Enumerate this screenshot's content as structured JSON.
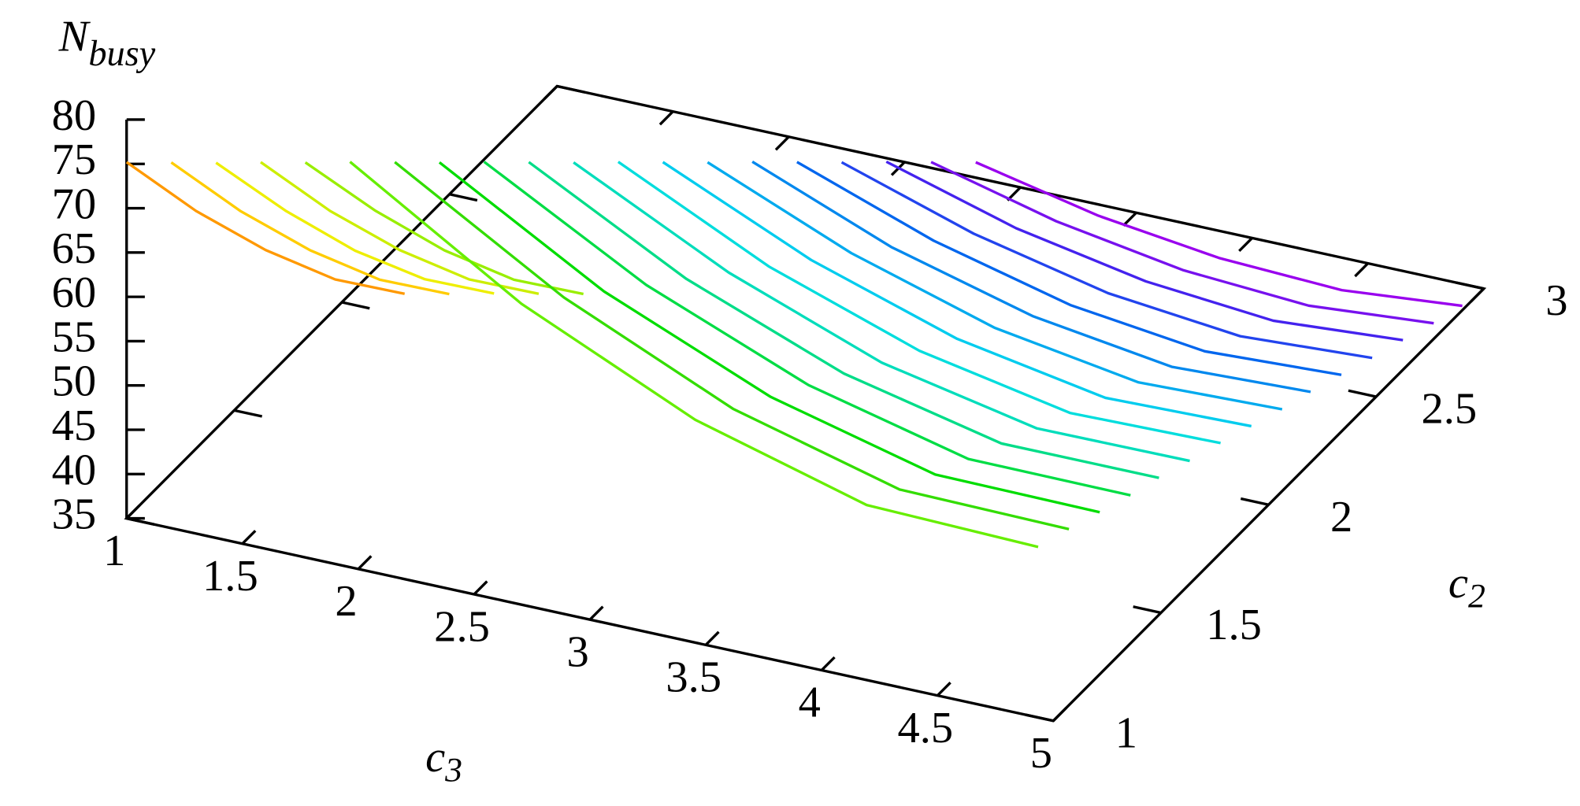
{
  "chart_data": {
    "type": "line3d",
    "xlabel": {
      "main": "c",
      "sub": "3"
    },
    "ylabel": {
      "main": "c",
      "sub": "2"
    },
    "zlabel": {
      "main": "N",
      "sub": "busy"
    },
    "xlim": [
      1,
      5
    ],
    "xticks": [
      1,
      1.5,
      2,
      2.5,
      3,
      3.5,
      4,
      4.5,
      5
    ],
    "ylim": [
      1,
      3
    ],
    "yticks": [
      1,
      1.5,
      2,
      2.5,
      3
    ],
    "zlim": [
      35,
      80
    ],
    "zticks": [
      35,
      40,
      45,
      50,
      55,
      60,
      65,
      70,
      75,
      80
    ],
    "series": [
      {
        "color": "#ff9900",
        "y": 1.0,
        "x": [
          1,
          1.3,
          1.6,
          1.9,
          2.2
        ],
        "values": [
          75.2,
          71.4,
          68.7,
          67.1,
          67.2
        ]
      },
      {
        "color": "#ffcc00",
        "y": 1.1,
        "x": [
          1.1,
          1.4,
          1.7,
          2.0,
          2.3
        ],
        "values": [
          73.3,
          69.5,
          66.8,
          65.2,
          65.3
        ]
      },
      {
        "color": "#eeee00",
        "y": 1.2,
        "x": [
          1.2,
          1.5,
          1.8,
          2.1,
          2.4
        ],
        "values": [
          71.4,
          67.7,
          64.9,
          63.4,
          63.5
        ]
      },
      {
        "color": "#ccee00",
        "y": 1.3,
        "x": [
          1.3,
          1.6,
          1.9,
          2.2,
          2.5
        ],
        "values": [
          69.6,
          65.8,
          63.1,
          61.5,
          61.6
        ]
      },
      {
        "color": "#99ee00",
        "y": 1.4,
        "x": [
          1.4,
          1.7,
          2.0,
          2.3,
          2.6
        ],
        "values": [
          67.7,
          64.0,
          61.2,
          59.6,
          59.7
        ]
      },
      {
        "color": "#66ee00",
        "y": 1.5,
        "x": [
          1.5,
          2.24,
          2.99,
          3.73,
          4.47
        ],
        "values": [
          65.9,
          54.1,
          45.3,
          39.9,
          39.4
        ]
      },
      {
        "color": "#33dd00",
        "y": 1.6,
        "x": [
          1.6,
          2.33,
          3.06,
          3.78,
          4.51
        ],
        "values": [
          64.0,
          52.9,
          44.5,
          39.5,
          39.2
        ]
      },
      {
        "color": "#00dd00",
        "y": 1.7,
        "x": [
          1.7,
          2.41,
          3.13,
          3.84,
          4.55
        ],
        "values": [
          62.1,
          51.6,
          43.8,
          39.1,
          38.9
        ]
      },
      {
        "color": "#00dd44",
        "y": 1.8,
        "x": [
          1.8,
          2.5,
          3.2,
          3.89,
          4.59
        ],
        "values": [
          60.3,
          50.4,
          43.1,
          38.7,
          38.6
        ]
      },
      {
        "color": "#00dd88",
        "y": 1.9,
        "x": [
          1.9,
          2.58,
          3.26,
          3.94,
          4.62
        ],
        "values": [
          58.4,
          49.1,
          42.3,
          38.3,
          38.3
        ]
      },
      {
        "color": "#00ddbb",
        "y": 2.0,
        "x": [
          2.0,
          2.67,
          3.33,
          4.0,
          4.66
        ],
        "values": [
          56.5,
          47.9,
          41.5,
          37.9,
          38.0
        ]
      },
      {
        "color": "#00dddd",
        "y": 2.1,
        "x": [
          2.1,
          2.75,
          3.4,
          4.05,
          4.7
        ],
        "values": [
          54.7,
          46.6,
          40.8,
          37.5,
          37.8
        ]
      },
      {
        "color": "#00ccee",
        "y": 2.2,
        "x": [
          2.2,
          2.84,
          3.47,
          4.11,
          4.74
        ],
        "values": [
          52.8,
          45.4,
          40.1,
          37.1,
          37.5
        ]
      },
      {
        "color": "#00aaee",
        "y": 2.3,
        "x": [
          2.3,
          2.92,
          3.54,
          4.16,
          4.78
        ],
        "values": [
          50.9,
          44.2,
          39.3,
          36.7,
          37.2
        ]
      },
      {
        "color": "#0088ee",
        "y": 2.4,
        "x": [
          2.4,
          3.0,
          3.61,
          4.21,
          4.81
        ],
        "values": [
          49.1,
          42.9,
          38.6,
          36.3,
          36.9
        ]
      },
      {
        "color": "#0066ee",
        "y": 2.5,
        "x": [
          2.5,
          3.09,
          3.68,
          4.26,
          4.85
        ],
        "values": [
          47.2,
          41.7,
          37.8,
          35.9,
          36.6
        ]
      },
      {
        "color": "#2244ee",
        "y": 2.6,
        "x": [
          2.6,
          3.17,
          3.75,
          4.32,
          4.89
        ],
        "values": [
          45.3,
          40.5,
          37.1,
          35.5,
          36.3
        ]
      },
      {
        "color": "#4422ee",
        "y": 2.7,
        "x": [
          2.7,
          3.26,
          3.82,
          4.37,
          4.93
        ],
        "values": [
          43.5,
          39.2,
          36.4,
          35.1,
          36.1
        ]
      },
      {
        "color": "#7711ee",
        "y": 2.8,
        "x": [
          2.8,
          3.34,
          3.89,
          4.43,
          4.97
        ],
        "values": [
          41.6,
          38.0,
          35.6,
          34.7,
          35.8
        ]
      },
      {
        "color": "#9900ee",
        "y": 2.9,
        "x": [
          2.9,
          3.43,
          3.95,
          4.48,
          5.0
        ],
        "values": [
          39.7,
          36.7,
          34.9,
          34.3,
          35.5
        ]
      }
    ]
  }
}
